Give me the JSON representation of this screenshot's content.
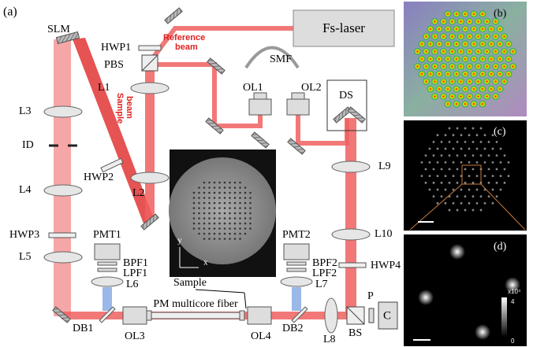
{
  "panel_labels": {
    "a": "(a)",
    "b": "(b)",
    "c": "(c)",
    "d": "(d)"
  },
  "labels": {
    "fs_laser": "Fs-laser",
    "slm": "SLM",
    "hwp1": "HWP1",
    "pbs": "PBS",
    "reference_beam": [
      "Reference",
      "beam"
    ],
    "sample_beam": [
      "Sample",
      "beam"
    ],
    "l1": "L1",
    "l2": "L2",
    "l3": "L3",
    "id": "ID",
    "hwp2": "HWP2",
    "l4": "L4",
    "hwp3": "HWP3",
    "l5": "L5",
    "ol1": "OL1",
    "smf": "SMF",
    "ol2": "OL2",
    "ds": "DS",
    "l9": "L9",
    "l10": "L10",
    "hwp4": "HWP4",
    "pmt1": "PMT1",
    "bpf1": "BPF1",
    "lpf1": "LPF1",
    "l6": "L6",
    "pmt2": "PMT2",
    "bpf2": "BPF2",
    "lpf2": "LPF2",
    "l7": "L7",
    "sample": "Sample",
    "pm_fiber": "PM multicore fiber",
    "db1": "DB1",
    "ol3": "OL3",
    "ol4": "OL4",
    "db2": "DB2",
    "l8": "L8",
    "bs": "BS",
    "p": "P",
    "c": "C",
    "axis_x": "x",
    "axis_y": "y",
    "colorbar_unit": "x10⁴",
    "colorbar_max": "4",
    "colorbar_min": "0"
  }
}
